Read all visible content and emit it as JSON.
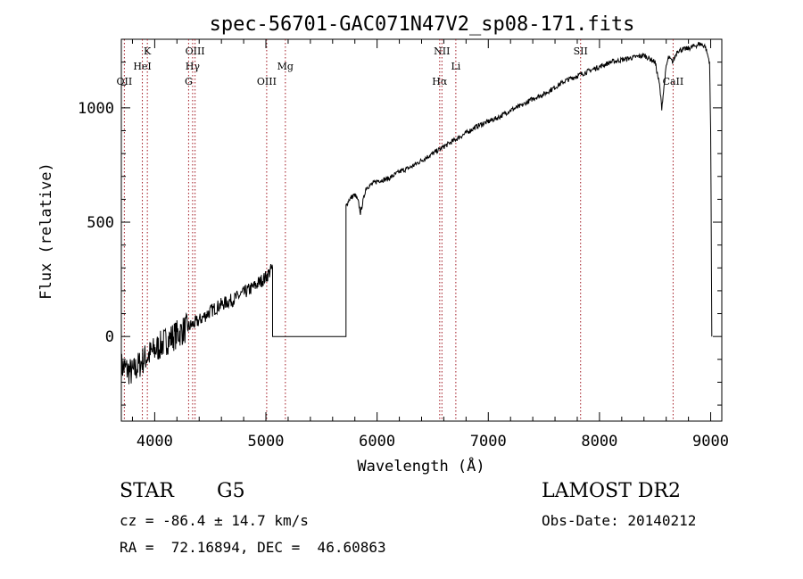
{
  "chart_data": {
    "type": "line",
    "title": "spec-56701-GAC071N47V2_sp08-171.fits",
    "xlabel": "Wavelength (Å)",
    "ylabel": "Flux (relative)",
    "xlim": [
      3700,
      9100
    ],
    "ylim": [
      -370,
      1300
    ],
    "grid": false,
    "x_ticks": [
      "4000",
      "5000",
      "6000",
      "7000",
      "8000",
      "9000"
    ],
    "y_ticks": [
      "0",
      "500",
      "1000"
    ],
    "series": [
      {
        "x": [
          3700,
          3800,
          3900,
          4000,
          4100,
          4200,
          4300,
          4400,
          4500,
          4600,
          4700,
          4800,
          4900,
          5000,
          5060,
          5060,
          5720,
          5720,
          5750,
          5800,
          5830,
          5850,
          5900,
          6000,
          6100,
          6200,
          6300,
          6400,
          6500,
          6600,
          6700,
          6800,
          6900,
          7000,
          7100,
          7200,
          7300,
          7400,
          7500,
          7600,
          7700,
          7800,
          7900,
          8000,
          8100,
          8200,
          8300,
          8400,
          8500,
          8540,
          8560,
          8600,
          8620,
          8660,
          8700,
          8800,
          8880,
          8900,
          8950,
          8990,
          9000,
          9010
        ],
        "y": [
          -130,
          -160,
          -100,
          -60,
          -20,
          10,
          40,
          70,
          110,
          140,
          160,
          190,
          220,
          260,
          300,
          0,
          0,
          570,
          600,
          620,
          590,
          540,
          650,
          680,
          690,
          720,
          740,
          770,
          800,
          830,
          860,
          890,
          920,
          940,
          960,
          990,
          1010,
          1040,
          1060,
          1090,
          1120,
          1140,
          1160,
          1180,
          1200,
          1210,
          1220,
          1230,
          1200,
          1100,
          1000,
          1180,
          1220,
          1200,
          1250,
          1260,
          1275,
          1280,
          1270,
          1200,
          900,
          0
        ]
      }
    ],
    "line_markers": [
      {
        "label": "OII",
        "wavelength": 3727,
        "row": 3
      },
      {
        "label": "HeI",
        "wavelength": 3889,
        "row": 2
      },
      {
        "label": "K",
        "wavelength": 3934,
        "row": 1
      },
      {
        "label": "G",
        "wavelength": 4305,
        "row": 3
      },
      {
        "label": "Hγ",
        "wavelength": 4341,
        "row": 2
      },
      {
        "label": "OIII",
        "wavelength": 4363,
        "row": 1
      },
      {
        "label": "OIII",
        "wavelength": 5007,
        "row": 3
      },
      {
        "label": "Mg",
        "wavelength": 5175,
        "row": 2
      },
      {
        "label": "Hα",
        "wavelength": 6563,
        "row": 3
      },
      {
        "label": "NII",
        "wavelength": 6583,
        "row": 1
      },
      {
        "label": "Li",
        "wavelength": 6708,
        "row": 2
      },
      {
        "label": "SII",
        "wavelength": 7830,
        "row": 1
      },
      {
        "label": "CaII",
        "wavelength": 8662,
        "row": 3
      }
    ]
  },
  "info": {
    "object_class": "STAR",
    "subclass": "G5",
    "survey": "LAMOST DR2",
    "redshift_line": "cz = -86.4 ± 14.7 km/s",
    "obs_date_line": "Obs-Date: 20140212",
    "coords_line": "RA =  72.16894, DEC =  46.60863"
  }
}
